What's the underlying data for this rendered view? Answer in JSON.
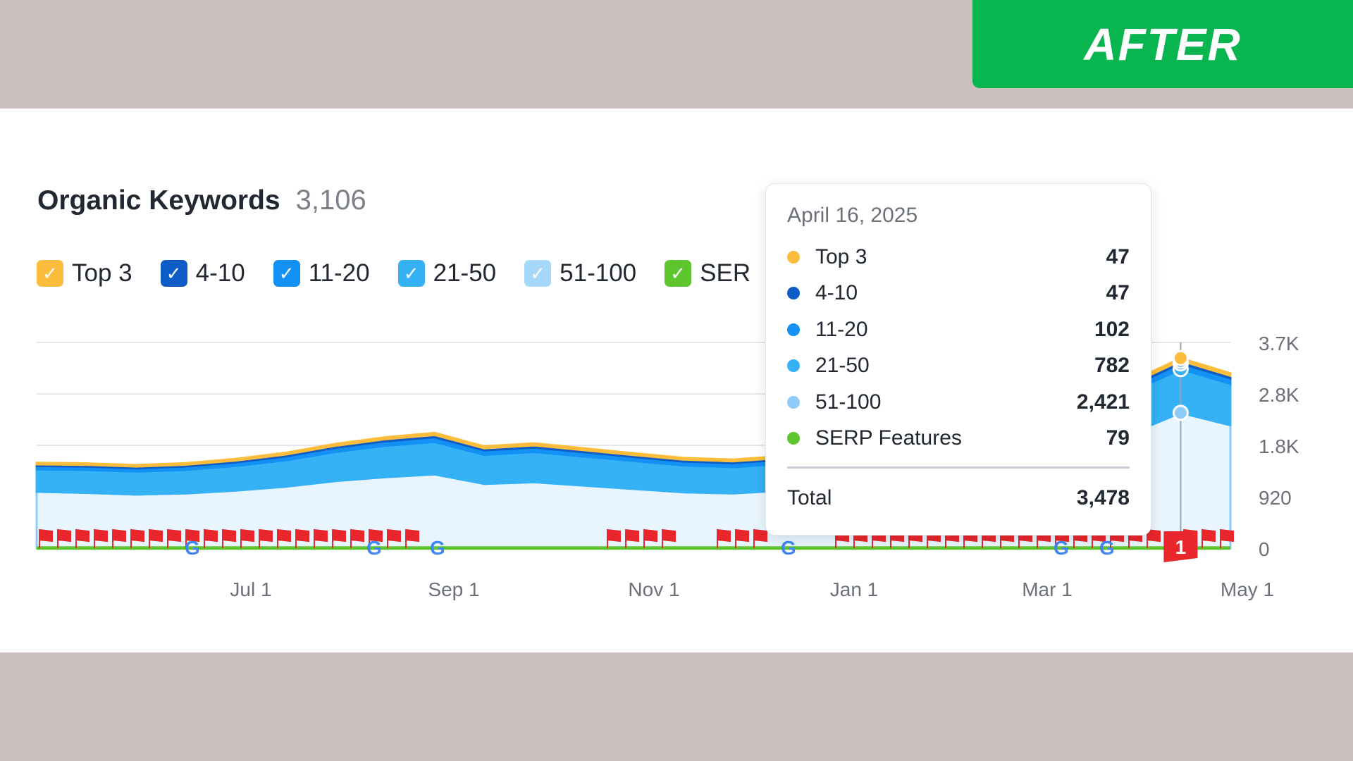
{
  "badge": {
    "label": "AFTER"
  },
  "header": {
    "title": "Organic Keywords",
    "count": "3,106"
  },
  "legend": [
    {
      "label": "Top 3",
      "color": "#fbbd3b",
      "checked": true
    },
    {
      "label": "4-10",
      "color": "#0d5cc7",
      "checked": true
    },
    {
      "label": "11-20",
      "color": "#1391f5",
      "checked": true
    },
    {
      "label": "21-50",
      "color": "#35b1f5",
      "checked": true
    },
    {
      "label": "51-100",
      "color": "#a5d8fb",
      "checked": true
    },
    {
      "label": "SER",
      "color": "#5ec52f",
      "checked": true
    }
  ],
  "tooltip": {
    "date": "April 16, 2025",
    "rows": [
      {
        "label": "Top 3",
        "value": "47",
        "color": "#fbbd3b"
      },
      {
        "label": "4-10",
        "value": "47",
        "color": "#0d5cc7"
      },
      {
        "label": "11-20",
        "value": "102",
        "color": "#1391f5"
      },
      {
        "label": "21-50",
        "value": "782",
        "color": "#35b1f5"
      },
      {
        "label": "51-100",
        "value": "2,421",
        "color": "#8fcbf8"
      },
      {
        "label": "SERP Features",
        "value": "79",
        "color": "#5ec52f"
      }
    ],
    "total_label": "Total",
    "total_value": "3,478"
  },
  "marker_badge": "1",
  "chart_data": {
    "type": "area",
    "stacked": true,
    "x_tick_labels": [
      "Jul 1",
      "Sep 1",
      "Nov 1",
      "Jan 1",
      "Mar 1",
      "May 1"
    ],
    "y_tick_labels": [
      "0",
      "920",
      "1.8K",
      "2.8K",
      "3.7K"
    ],
    "ylim": [
      0,
      3680
    ],
    "grid": true,
    "legend_placement": "top-left",
    "x": [
      "May 1",
      "May 15",
      "Jun 1",
      "Jun 15",
      "Jul 1",
      "Jul 15",
      "Aug 1",
      "Aug 15",
      "Sep 1",
      "Sep 15",
      "Oct 1",
      "Oct 15",
      "Nov 1",
      "Nov 15",
      "Dec 1",
      "Dec 15",
      "Jan 1",
      "Jan 15",
      "Feb 1",
      "Feb 15",
      "Mar 1",
      "Mar 15",
      "Apr 1",
      "Apr 16",
      "May 1"
    ],
    "series": [
      {
        "name": "51-100",
        "color": "#8fcbf8",
        "values": [
          1010,
          990,
          960,
          980,
          1030,
          1100,
          1200,
          1270,
          1320,
          1150,
          1180,
          1120,
          1060,
          1000,
          980,
          1030,
          1050,
          1080,
          1120,
          1250,
          1400,
          1700,
          2050,
          2421,
          2200
        ]
      },
      {
        "name": "21-50",
        "color": "#35b1f5",
        "values": [
          400,
          410,
          410,
          420,
          440,
          470,
          520,
          560,
          580,
          520,
          540,
          520,
          500,
          480,
          470,
          480,
          490,
          500,
          520,
          580,
          640,
          700,
          740,
          782,
          740
        ]
      },
      {
        "name": "11-20",
        "color": "#1391f5",
        "values": [
          60,
          60,
          60,
          62,
          65,
          70,
          75,
          80,
          85,
          78,
          80,
          76,
          72,
          70,
          70,
          72,
          74,
          76,
          80,
          85,
          90,
          95,
          100,
          102,
          98
        ]
      },
      {
        "name": "4-10",
        "color": "#0d5cc7",
        "values": [
          30,
          30,
          30,
          31,
          32,
          34,
          36,
          38,
          40,
          38,
          39,
          37,
          35,
          34,
          34,
          35,
          36,
          37,
          39,
          41,
          43,
          45,
          46,
          47,
          46
        ]
      },
      {
        "name": "Top 3",
        "color": "#fbbd3b",
        "values": [
          28,
          28,
          28,
          29,
          30,
          32,
          34,
          36,
          38,
          36,
          37,
          35,
          33,
          32,
          32,
          33,
          34,
          35,
          37,
          39,
          41,
          43,
          45,
          47,
          46
        ]
      }
    ],
    "serp_line": {
      "name": "SERP Features",
      "color": "#5ec52f",
      "values": [
        79,
        79,
        79,
        79,
        79,
        79,
        79,
        79,
        79,
        79,
        79,
        79,
        79,
        79,
        79,
        79,
        79,
        79,
        79,
        79,
        79,
        79,
        79,
        79,
        79
      ]
    }
  }
}
